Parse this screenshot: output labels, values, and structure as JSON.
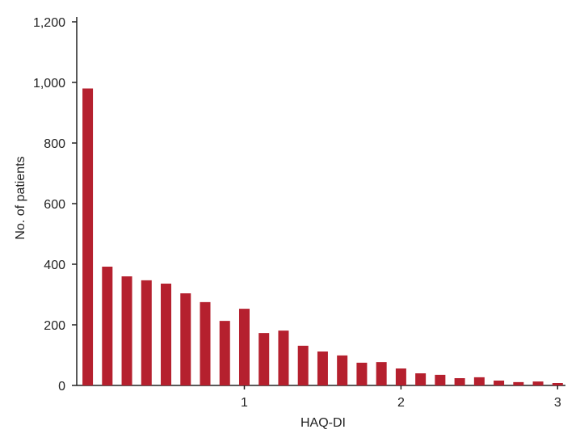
{
  "chart_data": {
    "type": "bar",
    "x_label": "HAQ-DI",
    "y_label": "No. of patients",
    "x": [
      0,
      0.125,
      0.25,
      0.375,
      0.5,
      0.625,
      0.75,
      0.875,
      1,
      1.125,
      1.25,
      1.375,
      1.5,
      1.625,
      1.75,
      1.875,
      2,
      2.125,
      2.25,
      2.375,
      2.5,
      2.625,
      2.75,
      2.875,
      3
    ],
    "values": [
      980,
      392,
      360,
      347,
      336,
      304,
      275,
      213,
      253,
      173,
      181,
      131,
      112,
      99,
      75,
      77,
      56,
      40,
      35,
      24,
      27,
      16,
      11,
      13,
      8
    ],
    "color": "#b5202e",
    "xlim": [
      -0.07,
      3.05
    ],
    "xticks": [
      1,
      2,
      3
    ],
    "ylim": [
      0,
      1200
    ],
    "yticks": [
      0,
      200,
      400,
      600,
      800,
      {
        "value": 1000,
        "label": "1,000"
      },
      {
        "value": 1200,
        "label": "1,200"
      }
    ],
    "grid": false
  }
}
